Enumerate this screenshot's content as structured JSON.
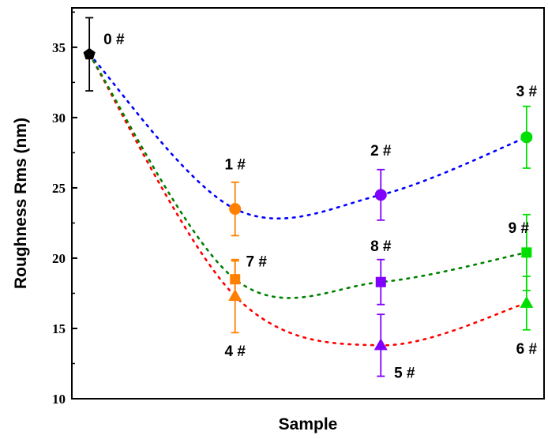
{
  "chart_data": {
    "type": "scatter",
    "title": "",
    "xlabel": "Sample",
    "ylabel": "Roughness Rms (nm)",
    "ylim": [
      10,
      37.8
    ],
    "yticks": [
      "10",
      "15",
      "20",
      "25",
      "30",
      "35"
    ],
    "x_positions": [
      0,
      1,
      2,
      3
    ],
    "xlim": [
      -0.12,
      3.12
    ],
    "grid": false,
    "legend": "none",
    "points": [
      {
        "label": "0 #",
        "x": 0,
        "y": 34.5,
        "err": 2.6,
        "color": "#000000",
        "marker": "pentagon"
      },
      {
        "label": "1 #",
        "x": 1,
        "y": 23.5,
        "err": 1.9,
        "color": "#ff8000",
        "marker": "circle"
      },
      {
        "label": "2 #",
        "x": 2,
        "y": 24.5,
        "err": 1.8,
        "color": "#8000ff",
        "marker": "circle"
      },
      {
        "label": "3 #",
        "x": 3,
        "y": 28.6,
        "err": 2.2,
        "color": "#00e000",
        "marker": "circle"
      },
      {
        "label": "4 #",
        "x": 1,
        "y": 17.3,
        "err": 2.6,
        "color": "#ff8000",
        "marker": "triangle"
      },
      {
        "label": "5 #",
        "x": 2,
        "y": 13.8,
        "err": 2.2,
        "color": "#8000ff",
        "marker": "triangle"
      },
      {
        "label": "6 #",
        "x": 3,
        "y": 16.8,
        "err": 1.9,
        "color": "#00e000",
        "marker": "triangle"
      },
      {
        "label": "7 #",
        "x": 1,
        "y": 18.5,
        "err": 1.3,
        "color": "#ff8000",
        "marker": "square"
      },
      {
        "label": "8 #",
        "x": 2,
        "y": 18.3,
        "err": 1.6,
        "color": "#8000ff",
        "marker": "square"
      },
      {
        "label": "9 #",
        "x": 3,
        "y": 20.4,
        "err": 2.7,
        "color": "#00e000",
        "marker": "square"
      }
    ],
    "trend_lines": [
      {
        "color": "#0000ff",
        "style": "dotted",
        "points": [
          "0 #",
          "1 #",
          "2 #",
          "3 #"
        ]
      },
      {
        "color": "#ff0000",
        "style": "dotted",
        "points": [
          "0 #",
          "4 #",
          "5 #",
          "6 #"
        ]
      },
      {
        "color": "#008000",
        "style": "dotted",
        "points": [
          "0 #",
          "7 #",
          "8 #",
          "9 #"
        ]
      }
    ]
  }
}
